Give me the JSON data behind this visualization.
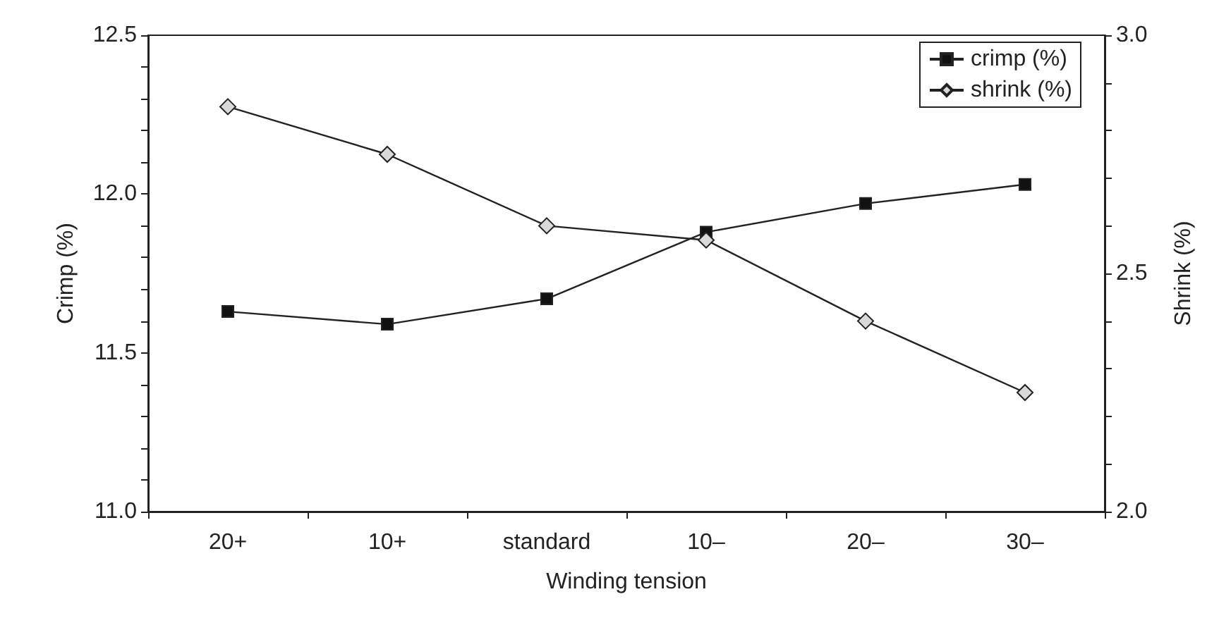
{
  "chart_data": {
    "type": "line",
    "xlabel": "Winding tension",
    "ylabel": "Crimp (%)",
    "y2label": "Shrink (%)",
    "categories": [
      "20+",
      "10+",
      "standard",
      "10–",
      "20–",
      "30–"
    ],
    "series": [
      {
        "name": "crimp (%)",
        "color": "#111111",
        "marker": "square",
        "values": [
          11.63,
          11.59,
          11.67,
          11.88,
          11.97,
          12.03
        ]
      },
      {
        "name": "shrink (%)",
        "color": "#d9d9d9",
        "marker": "diamond",
        "axis": "y2",
        "values": [
          2.85,
          2.75,
          2.6,
          2.57,
          2.4,
          2.25
        ]
      }
    ],
    "ylim": [
      11,
      12.5
    ],
    "yticks": [
      {
        "value": 11,
        "label": "11.0"
      },
      {
        "value": 11.1,
        "label": null
      },
      {
        "value": 11.2,
        "label": null
      },
      {
        "value": 11.3,
        "label": null
      },
      {
        "value": 11.4,
        "label": null
      },
      {
        "value": 11.5,
        "label": "11.5"
      },
      {
        "value": 11.6,
        "label": null
      },
      {
        "value": 11.7,
        "label": null
      },
      {
        "value": 11.8,
        "label": null
      },
      {
        "value": 11.9,
        "label": null
      },
      {
        "value": 12,
        "label": "12.0"
      },
      {
        "value": 12.1,
        "label": null
      },
      {
        "value": 12.2,
        "label": null
      },
      {
        "value": 12.3,
        "label": null
      },
      {
        "value": 12.4,
        "label": null
      },
      {
        "value": 12.5,
        "label": "12.5"
      }
    ],
    "y2lim": [
      2,
      3
    ],
    "y2ticks": [
      {
        "value": 2,
        "label": "2.0"
      },
      {
        "value": 2.1,
        "label": null
      },
      {
        "value": 2.2,
        "label": null
      },
      {
        "value": 2.3,
        "label": null
      },
      {
        "value": 2.4,
        "label": null
      },
      {
        "value": 2.5,
        "label": "2.5"
      },
      {
        "value": 2.6,
        "label": null
      },
      {
        "value": 2.7,
        "label": null
      },
      {
        "value": 2.8,
        "label": null
      },
      {
        "value": 2.9,
        "label": null
      },
      {
        "value": 3,
        "label": "3.0"
      }
    ],
    "grid": false,
    "legend": "top right",
    "line_style": "solid"
  }
}
